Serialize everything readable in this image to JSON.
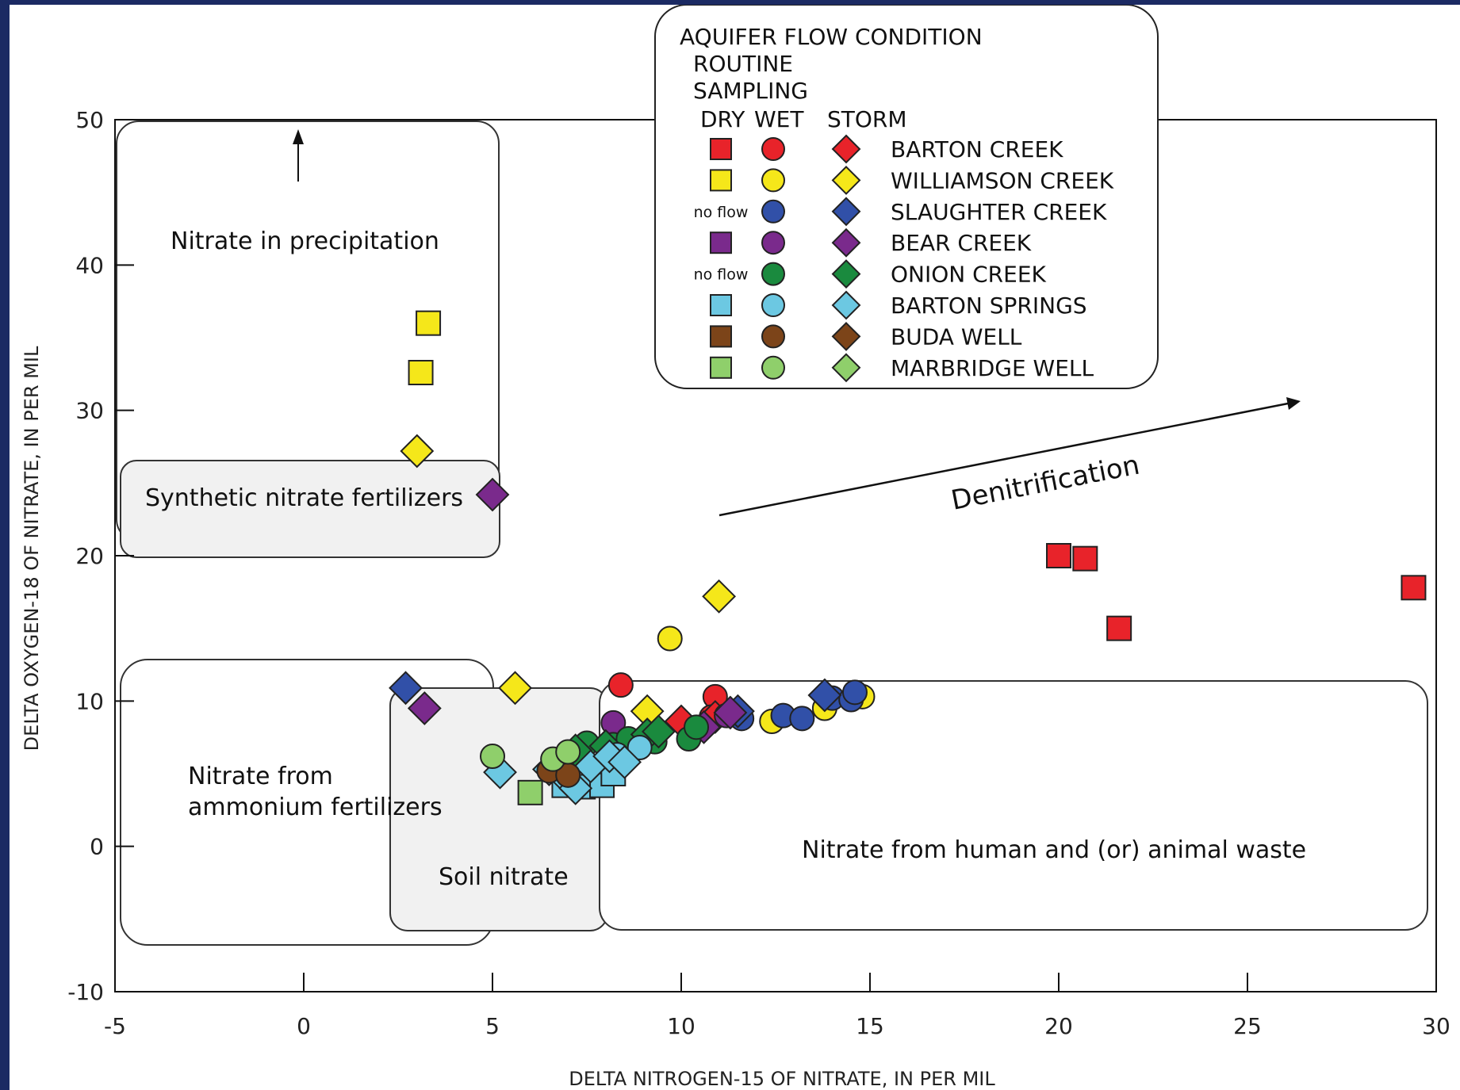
{
  "colors": {
    "background": "#1b2a63",
    "barton_creek": "#e8232a",
    "williamson_creek": "#f5e71a",
    "slaughter_creek": "#3150a8",
    "bear_creek": "#7a2a8c",
    "onion_creek": "#1a8a3e",
    "barton_springs": "#6cc8e2",
    "buda_well": "#7c4419",
    "marbridge_well": "#8fcf6b",
    "region_fill": "#f1f1f1"
  },
  "chart_data": {
    "type": "scatter",
    "xlabel": "DELTA NITROGEN-15 OF NITRATE, IN PER MIL",
    "ylabel": "DELTA OXYGEN-18 OF NITRATE, IN PER MIL",
    "xlim": [
      -5,
      30
    ],
    "ylim": [
      -10,
      50
    ],
    "x_ticks": [
      -5,
      0,
      5,
      10,
      15,
      20,
      25,
      30
    ],
    "y_ticks": [
      -10,
      0,
      10,
      20,
      30,
      40,
      50
    ],
    "grid": false,
    "regions": [
      {
        "label": "Nitrate in precipitation"
      },
      {
        "label": "Synthetic nitrate fertilizers"
      },
      {
        "label": "Nitrate from",
        "label2": "ammonium fertilizers"
      },
      {
        "label": "Soil nitrate"
      },
      {
        "label": "Nitrate from human and (or) animal waste"
      }
    ],
    "annotations": {
      "denitrification": "Denitrification"
    },
    "legend": {
      "title": "AQUIFER FLOW CONDITION",
      "routine_line1": "ROUTINE",
      "routine_line2": "SAMPLING",
      "col_dry": "DRY",
      "col_wet": "WET",
      "col_storm": "STORM",
      "no_flow": "no flow",
      "placement": "top-center",
      "entries": [
        {
          "name": "BARTON CREEK",
          "color_key": "barton_creek",
          "dry": true
        },
        {
          "name": "WILLIAMSON CREEK",
          "color_key": "williamson_creek",
          "dry": true
        },
        {
          "name": "SLAUGHTER CREEK",
          "color_key": "slaughter_creek",
          "dry": false
        },
        {
          "name": "BEAR CREEK",
          "color_key": "bear_creek",
          "dry": true
        },
        {
          "name": "ONION CREEK",
          "color_key": "onion_creek",
          "dry": false
        },
        {
          "name": "BARTON SPRINGS",
          "color_key": "barton_springs",
          "dry": true
        },
        {
          "name": "BUDA WELL",
          "color_key": "buda_well",
          "dry": true
        },
        {
          "name": "MARBRIDGE WELL",
          "color_key": "marbridge_well",
          "dry": true
        }
      ]
    },
    "series": [
      {
        "name": "BARTON CREEK",
        "color_key": "barton_creek",
        "dry": [
          [
            20.0,
            20.0
          ],
          [
            20.7,
            19.8
          ],
          [
            21.6,
            15.0
          ],
          [
            29.4,
            17.8
          ]
        ],
        "wet": [
          [
            8.4,
            11.1
          ],
          [
            10.9,
            10.3
          ],
          [
            10.8,
            8.9
          ]
        ],
        "storm": [
          [
            10.0,
            8.6
          ],
          [
            10.9,
            8.9
          ]
        ]
      },
      {
        "name": "WILLIAMSON CREEK",
        "color_key": "williamson_creek",
        "dry": [
          [
            3.3,
            36.0
          ],
          [
            3.1,
            32.6
          ]
        ],
        "wet": [
          [
            9.7,
            14.3
          ],
          [
            12.4,
            8.6
          ],
          [
            13.8,
            9.5
          ],
          [
            14.8,
            10.3
          ]
        ],
        "storm": [
          [
            3.0,
            27.2
          ],
          [
            11.0,
            17.2
          ],
          [
            5.6,
            10.9
          ],
          [
            9.1,
            9.3
          ]
        ]
      },
      {
        "name": "SLAUGHTER CREEK",
        "color_key": "slaughter_creek",
        "dry": [],
        "wet": [
          [
            11.6,
            8.8
          ],
          [
            12.7,
            9.0
          ],
          [
            13.2,
            8.8
          ],
          [
            14.0,
            10.2
          ],
          [
            14.5,
            10.1
          ],
          [
            14.6,
            10.6
          ]
        ],
        "storm": [
          [
            2.7,
            10.9
          ],
          [
            13.8,
            10.4
          ],
          [
            11.5,
            9.3
          ]
        ]
      },
      {
        "name": "BEAR CREEK",
        "color_key": "bear_creek",
        "dry": [],
        "wet": [
          [
            8.2,
            8.5
          ],
          [
            11.2,
            9.0
          ]
        ],
        "storm": [
          [
            5.0,
            24.2
          ],
          [
            3.2,
            9.5
          ],
          [
            10.6,
            8.2
          ],
          [
            11.3,
            9.2
          ]
        ]
      },
      {
        "name": "ONION CREEK",
        "color_key": "onion_creek",
        "dry": [],
        "wet": [
          [
            7.5,
            7.1
          ],
          [
            8.2,
            7.0
          ],
          [
            8.6,
            7.4
          ],
          [
            9.3,
            7.2
          ],
          [
            10.2,
            7.4
          ],
          [
            10.4,
            8.2
          ]
        ],
        "storm": [
          [
            7.2,
            6.6
          ],
          [
            8.0,
            6.9
          ],
          [
            9.1,
            7.7
          ],
          [
            9.4,
            7.9
          ]
        ]
      },
      {
        "name": "BARTON SPRINGS",
        "color_key": "barton_springs",
        "dry": [
          [
            6.9,
            4.2
          ],
          [
            7.4,
            4.1
          ],
          [
            7.9,
            4.2
          ],
          [
            8.2,
            5.0
          ]
        ],
        "wet": [
          [
            8.3,
            6.3
          ],
          [
            8.9,
            6.8
          ]
        ],
        "storm": [
          [
            5.2,
            5.1
          ],
          [
            6.5,
            5.3
          ],
          [
            6.9,
            4.8
          ],
          [
            7.2,
            4.0
          ],
          [
            7.6,
            5.5
          ],
          [
            8.1,
            6.2
          ],
          [
            8.5,
            5.8
          ]
        ]
      },
      {
        "name": "BUDA WELL",
        "color_key": "buda_well",
        "dry": [],
        "wet": [
          [
            6.5,
            5.2
          ],
          [
            7.0,
            4.9
          ]
        ],
        "storm": []
      },
      {
        "name": "MARBRIDGE WELL",
        "color_key": "marbridge_well",
        "dry": [
          [
            6.0,
            3.7
          ]
        ],
        "wet": [
          [
            5.0,
            6.2
          ],
          [
            6.6,
            6.0
          ],
          [
            7.0,
            6.5
          ]
        ],
        "storm": []
      }
    ]
  }
}
